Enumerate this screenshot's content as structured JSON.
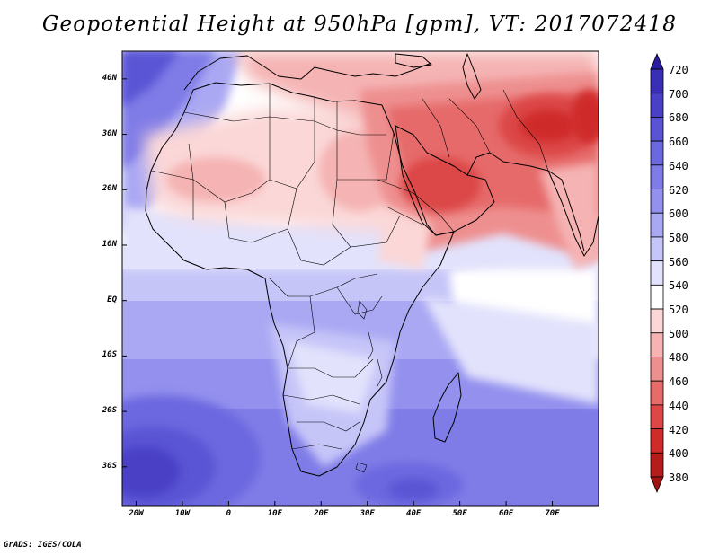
{
  "title": "Geopotential Height at 950hPa [gpm], VT: 2017072418",
  "credit": "GrADS: IGES/COLA",
  "map": {
    "lon_range": [
      -23,
      80
    ],
    "lat_range": [
      -37,
      45
    ],
    "lon_ticks": [
      "20W",
      "10W",
      "0",
      "10E",
      "20E",
      "30E",
      "40E",
      "50E",
      "60E",
      "70E"
    ],
    "lon_tick_values": [
      -20,
      -10,
      0,
      10,
      20,
      30,
      40,
      50,
      60,
      70
    ],
    "lat_ticks": [
      "40N",
      "30N",
      "20N",
      "10N",
      "EQ",
      "10S",
      "20S",
      "30S"
    ],
    "lat_tick_values": [
      40,
      30,
      20,
      10,
      0,
      -10,
      -20,
      -30
    ]
  },
  "colorbar": {
    "levels": [
      "720",
      "700",
      "680",
      "660",
      "640",
      "620",
      "600",
      "580",
      "560",
      "540",
      "520",
      "500",
      "480",
      "460",
      "440",
      "420",
      "400",
      "380"
    ],
    "colors": [
      "#2a1e9e",
      "#3a2fb4",
      "#4a40c6",
      "#5a54d4",
      "#6c68df",
      "#7f7ce7",
      "#9390ee",
      "#aaa8f3",
      "#c6c5f8",
      "#e2e2fc",
      "#ffffff",
      "#fbd7d7",
      "#f5b3b3",
      "#ee8f8f",
      "#e66b6b",
      "#dc4747",
      "#cf2b2b",
      "#b51c1c",
      "#a01414"
    ]
  },
  "fields": {
    "blue_highs": [
      {
        "name": "south-atlantic-high",
        "lon": -18,
        "lat": -31,
        "value": 700
      },
      {
        "name": "madagascar-high",
        "lon": 42,
        "lat": -31,
        "value": 660
      },
      {
        "name": "azores-high",
        "lon": -21,
        "lat": 40,
        "value": 680
      }
    ],
    "red_lows": [
      {
        "name": "arabian-heat-low",
        "lon": 47,
        "lat": 24,
        "value": 440
      },
      {
        "name": "pakistan-heat-low",
        "lon": 66,
        "lat": 30,
        "value": 420
      },
      {
        "name": "saharan-heat-low",
        "lon": -3,
        "lat": 21,
        "value": 500
      }
    ]
  }
}
